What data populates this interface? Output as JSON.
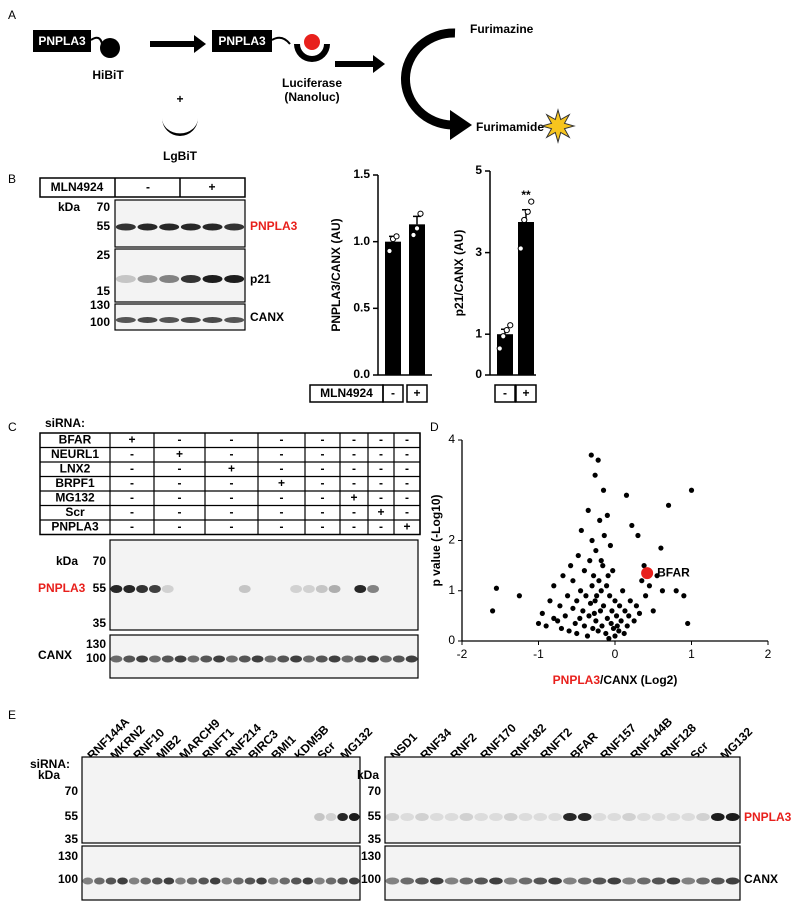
{
  "panel_labels": {
    "a": "A",
    "b": "B",
    "c": "C",
    "d": "D",
    "e": "E"
  },
  "scheme": {
    "tag_left": "PNPLA3",
    "hibit": "HiBiT",
    "plus": "+",
    "lgbit": "LgBiT",
    "tag_right": "PNPLA3",
    "luciferase": "Luciferase",
    "nanoluc": "(Nanoluc)",
    "substrate": "Furimazine",
    "product": "Furimamide"
  },
  "blot_b": {
    "treatment": "MLN4924",
    "conditions": [
      "-",
      "+"
    ],
    "kda": "kDa",
    "rows": [
      {
        "protein": "PNPLA3",
        "markers": [
          "70",
          "55"
        ]
      },
      {
        "protein": "p21",
        "markers": [
          "25",
          "15"
        ]
      },
      {
        "protein": "CANX",
        "markers": [
          "130",
          "100"
        ]
      }
    ]
  },
  "blot_c": {
    "sirna_header": "siRNA:",
    "rows": [
      {
        "name": "BFAR",
        "signs": [
          "+",
          "-",
          "-",
          "-",
          "-",
          "-",
          "-",
          "-"
        ]
      },
      {
        "name": "NEURL1",
        "signs": [
          "-",
          "+",
          "-",
          "-",
          "-",
          "-",
          "-",
          "-"
        ]
      },
      {
        "name": "LNX2",
        "signs": [
          "-",
          "-",
          "+",
          "-",
          "-",
          "-",
          "-",
          "-"
        ]
      },
      {
        "name": "BRPF1",
        "signs": [
          "-",
          "-",
          "-",
          "+",
          "-",
          "-",
          "-",
          "-"
        ]
      },
      {
        "name": "MG132",
        "signs": [
          "-",
          "-",
          "-",
          "-",
          "-",
          "+",
          "-",
          "-"
        ]
      },
      {
        "name": "Scr",
        "signs": [
          "-",
          "-",
          "-",
          "-",
          "-",
          "-",
          "+",
          "-"
        ]
      },
      {
        "name": "PNPLA3",
        "signs": [
          "-",
          "-",
          "-",
          "-",
          "-",
          "-",
          "-",
          "+"
        ]
      }
    ],
    "kda": "kDa",
    "proteins": [
      {
        "protein": "PNPLA3",
        "markers": [
          "70",
          "55",
          "35"
        ]
      },
      {
        "protein": "CANX",
        "markers": [
          "130",
          "100"
        ]
      }
    ]
  },
  "blot_e": {
    "sirna_header": "siRNA:",
    "left": {
      "kda": "kDa",
      "sirnas": [
        "RNF144A",
        "MKRN2",
        "RNF10",
        "MIB2",
        "MARCH9",
        "RNFT1",
        "RNF214",
        "BIRC3",
        "BMI1",
        "KDM5B",
        "Scr",
        "MG132"
      ],
      "markers_top": [
        "70",
        "55",
        "35"
      ],
      "markers_bottom": [
        "130",
        "100"
      ]
    },
    "right": {
      "kda": "kDa",
      "sirnas": [
        "NSD1",
        "RNF34",
        "RNF2",
        "RNF170",
        "RNF182",
        "RNFT2",
        "BFAR",
        "RNF157",
        "RNF144B",
        "RNF128",
        "Scr",
        "MG132"
      ],
      "markers_top": [
        "70",
        "55",
        "35"
      ],
      "markers_bottom": [
        "130",
        "100"
      ]
    },
    "proteins": [
      "PNPLA3",
      "CANX"
    ]
  },
  "chart_data": [
    {
      "type": "bar",
      "y_label": "PNPLA3/CANX (AU)",
      "x_label": "MLN4924",
      "categories": [
        "-",
        "+"
      ],
      "values": [
        1.0,
        1.13
      ],
      "errors": [
        0.04,
        0.06
      ],
      "points": [
        [
          0.93,
          1.02,
          1.04
        ],
        [
          1.05,
          1.1,
          1.21
        ]
      ],
      "color": "#000000",
      "ylim": [
        0,
        1.5
      ],
      "yticks": [
        {
          "value": 0,
          "label": "0.0"
        },
        {
          "value": 0.5,
          "label": "0.5"
        },
        {
          "value": 1,
          "label": "1.0"
        },
        {
          "value": 1.5,
          "label": "1.5"
        }
      ]
    },
    {
      "type": "bar",
      "y_label": "p21/CANX (AU)",
      "categories": [
        "-",
        "+"
      ],
      "values": [
        1.0,
        3.75
      ],
      "errors": [
        0.12,
        0.3
      ],
      "points": [
        [
          0.65,
          0.95,
          1.1,
          1.22
        ],
        [
          3.1,
          3.8,
          4.0,
          4.25
        ]
      ],
      "annotation": "**",
      "color": "#000000",
      "ylim": [
        0,
        5
      ],
      "yticks": [
        0,
        1,
        3,
        5
      ]
    },
    {
      "type": "scatter",
      "x_label_highlight": "PNPLA3",
      "x_label_rest": "/CANX (Log2)",
      "y_label": "p value (-Log10)",
      "color": "#000000",
      "x": [
        -1.6,
        -1.55,
        -1.25,
        -1.0,
        -0.95,
        -0.9,
        -0.85,
        -0.8,
        -0.8,
        -0.75,
        -0.72,
        -0.7,
        -0.68,
        -0.65,
        -0.62,
        -0.6,
        -0.58,
        -0.55,
        -0.55,
        -0.52,
        -0.5,
        -0.5,
        -0.48,
        -0.46,
        -0.45,
        -0.44,
        -0.42,
        -0.4,
        -0.4,
        -0.38,
        -0.36,
        -0.35,
        -0.34,
        -0.33,
        -0.32,
        -0.3,
        -0.3,
        -0.29,
        -0.28,
        -0.27,
        -0.26,
        -0.25,
        -0.25,
        -0.24,
        -0.22,
        -0.22,
        -0.21,
        -0.2,
        -0.19,
        -0.18,
        -0.17,
        -0.16,
        -0.15,
        -0.15,
        -0.14,
        -0.12,
        -0.11,
        -0.1,
        -0.1,
        -0.09,
        -0.08,
        -0.07,
        -0.06,
        -0.05,
        -0.04,
        -0.03,
        -0.02,
        0.0,
        0.0,
        0.02,
        0.03,
        0.05,
        0.06,
        0.08,
        0.1,
        0.12,
        0.13,
        0.15,
        0.16,
        0.18,
        0.2,
        0.22,
        0.25,
        0.28,
        0.3,
        0.32,
        0.35,
        0.38,
        0.4,
        0.45,
        0.5,
        0.55,
        0.6,
        0.62,
        0.7,
        0.8,
        0.9,
        0.95,
        1.0,
        -0.26,
        -0.31,
        -0.18
      ],
      "values": [
        0.6,
        1.05,
        0.9,
        0.35,
        0.55,
        0.3,
        0.8,
        0.45,
        1.1,
        0.4,
        0.7,
        0.25,
        1.3,
        0.5,
        0.9,
        0.2,
        1.5,
        0.65,
        1.2,
        0.35,
        0.15,
        0.8,
        1.7,
        0.45,
        1.0,
        2.2,
        0.6,
        0.3,
        1.4,
        0.9,
        0.1,
        2.6,
        0.5,
        1.6,
        0.75,
        1.1,
        2.0,
        0.25,
        1.3,
        0.55,
        3.3,
        0.4,
        1.8,
        0.9,
        3.6,
        0.2,
        1.2,
        2.4,
        0.6,
        1.0,
        0.3,
        1.5,
        3.0,
        0.7,
        2.1,
        0.15,
        1.1,
        2.5,
        0.45,
        1.3,
        0.05,
        0.9,
        1.9,
        0.35,
        0.6,
        1.4,
        0.25,
        0.8,
        0.1,
        0.5,
        0.3,
        0.2,
        0.7,
        0.4,
        1.0,
        0.15,
        0.6,
        2.9,
        0.3,
        0.5,
        0.8,
        2.3,
        0.4,
        0.7,
        2.1,
        0.55,
        1.2,
        1.5,
        0.9,
        1.1,
        0.6,
        1.3,
        1.85,
        1.0,
        2.7,
        1.0,
        0.9,
        0.35,
        3.0,
        0.8,
        3.7,
        1.6
      ],
      "highlight": {
        "label": "BFAR",
        "x": 0.42,
        "y": 1.35,
        "color": "#e8201c"
      },
      "xlim": [
        -2,
        2
      ],
      "ylim": [
        0,
        4
      ],
      "xticks": [
        -2,
        -1,
        0,
        1,
        2
      ],
      "yticks": [
        0,
        1,
        2,
        4
      ]
    }
  ]
}
